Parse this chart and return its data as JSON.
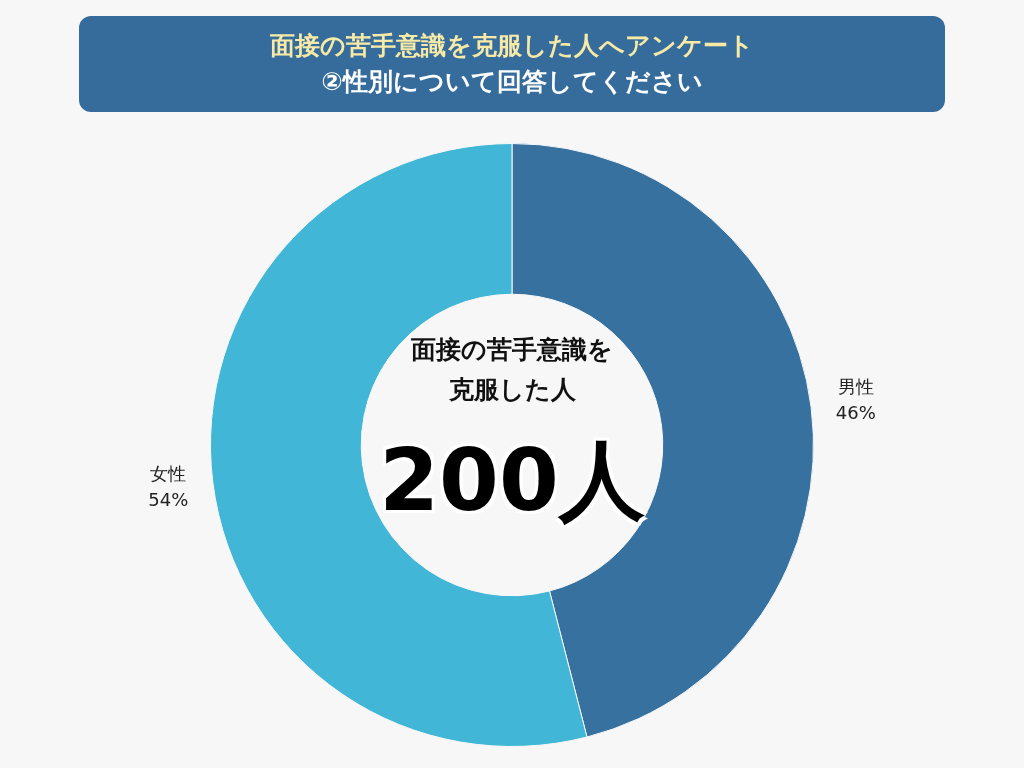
{
  "chart_data": {
    "type": "donut",
    "title": "面接の苦手意識を克服した人へアンケート",
    "subtitle": "②性別について回答してください",
    "categories": [
      "男性",
      "女性"
    ],
    "values": [
      46,
      54
    ],
    "colors": [
      "#3771a0",
      "#42b6d6"
    ],
    "value_labels": [
      "46%",
      "54%"
    ],
    "legend": false,
    "annotations": [
      "面接の苦手意識を克服した人",
      "200人"
    ]
  }
}
